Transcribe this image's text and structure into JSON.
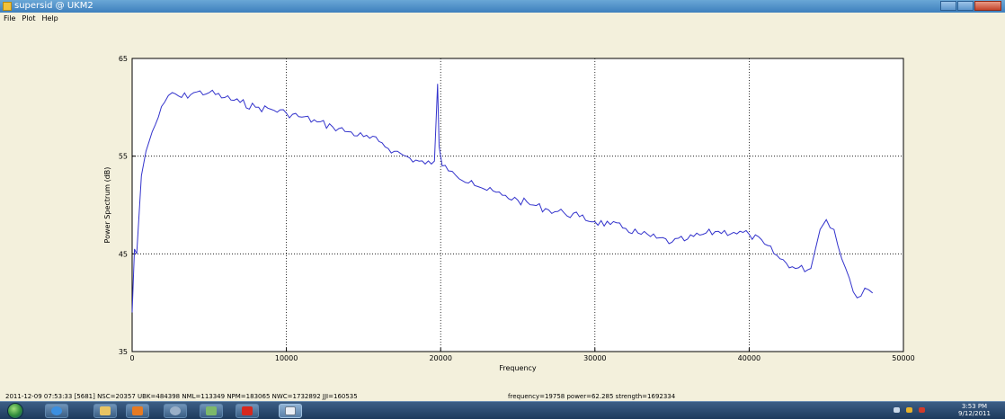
{
  "window": {
    "title": "supersid @ UKM2",
    "icon": "app-icon",
    "controls": [
      "minimize-icon",
      "maximize-icon",
      "close-icon"
    ]
  },
  "menu": {
    "items": [
      "File",
      "Plot",
      "Help"
    ]
  },
  "chart_data": {
    "type": "line",
    "title": "",
    "xlabel": "Frequency",
    "ylabel": "Power Spectrum (dB)",
    "xlim": [
      0,
      50000
    ],
    "ylim": [
      35,
      65
    ],
    "xticks": [
      "0",
      "10000",
      "20000",
      "30000",
      "40000",
      "50000"
    ],
    "yticks": [
      "35",
      "45",
      "55",
      "65"
    ],
    "grid": true,
    "line_color": "#3333cc",
    "series": [
      {
        "x": [
          0,
          150,
          300,
          600,
          900,
          1300,
          1700,
          2100,
          2600,
          3200,
          4000,
          5000,
          6000,
          7000,
          8000,
          9000,
          10000,
          11000,
          12000,
          13000,
          14000,
          15000,
          16000,
          17000,
          18000,
          19000,
          19600,
          19800,
          19900,
          20100,
          20500,
          21000,
          22000,
          23000,
          24000,
          25000,
          26000,
          27000,
          28000,
          29000,
          30000,
          31000,
          32000,
          33000,
          34000,
          35000,
          36000,
          37000,
          38000,
          39000,
          40000,
          41000,
          42000,
          43000,
          44000,
          44600,
          45000,
          45500,
          46000,
          46500,
          47000,
          47500,
          48000
        ],
        "y": [
          39.0,
          45.5,
          45.0,
          53.0,
          55.5,
          57.5,
          59.0,
          60.5,
          61.5,
          61.0,
          61.5,
          61.5,
          61.0,
          60.5,
          60.0,
          59.8,
          59.4,
          59.0,
          58.5,
          58.0,
          57.5,
          57.0,
          56.5,
          55.5,
          54.8,
          54.2,
          54.5,
          62.4,
          56.0,
          54.0,
          53.5,
          53.0,
          52.5,
          51.5,
          51.0,
          50.5,
          50.0,
          49.5,
          49.2,
          48.8,
          48.3,
          48.0,
          47.6,
          47.0,
          46.6,
          46.2,
          46.5,
          47.0,
          47.3,
          47.2,
          47.0,
          46.0,
          44.5,
          43.5,
          43.5,
          47.5,
          48.5,
          47.5,
          44.5,
          42.5,
          40.5,
          41.5,
          41.0
        ]
      }
    ]
  },
  "status": {
    "left": "2011-12-09 07:53:33  [5681]  NSC=20357 UBK=484398 NML=113349 NPM=183065 NWC=1732892 JJI=160535",
    "right": "frequency=19758   power=62.285   strength=1692334"
  },
  "taskbar": {
    "start_icon": "windows-start-icon",
    "apps": [
      "internet-explorer-icon",
      "file-explorer-icon",
      "media-player-icon",
      "network-icon",
      "chart-app-icon",
      "pdf-icon",
      "supersid-window-icon"
    ],
    "tray_icons": [
      "arrow-up-icon",
      "network-tray-icon",
      "speaker-icon"
    ],
    "clock_time": "3:53 PM",
    "clock_date": "9/12/2011"
  }
}
